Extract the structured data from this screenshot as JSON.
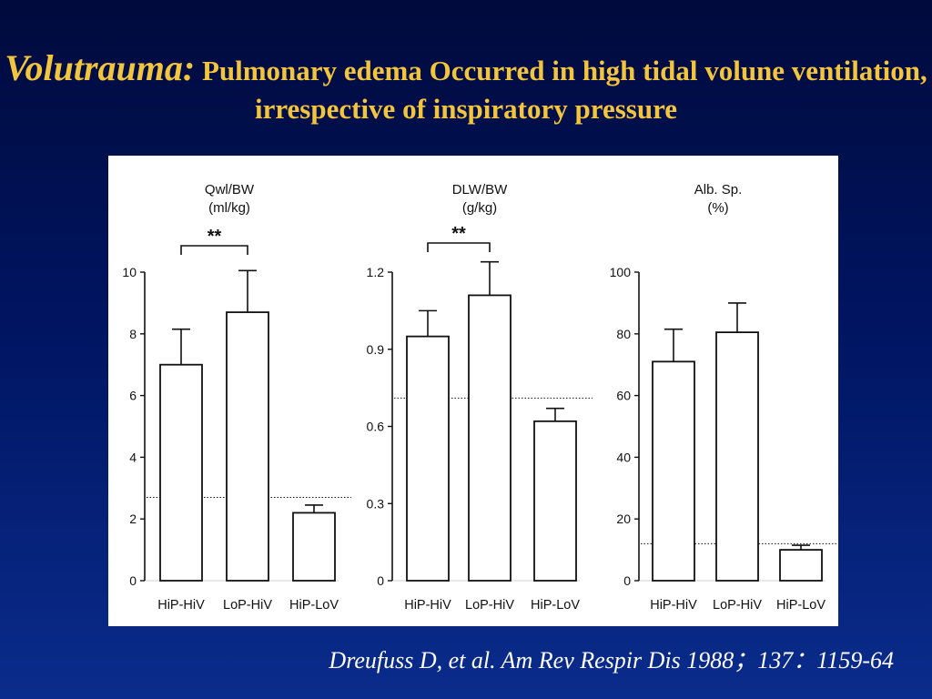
{
  "title": {
    "lead": "Volutrauma:",
    "rest": " Pulmonary edema Occurred in high tidal volune ventilation, irrespective of inspiratory pressure"
  },
  "citation": "Dreufuss D, et al. Am Rev Respir Dis 1988；137：1159-64",
  "colors": {
    "title": "#f3c43d",
    "background": "#001460",
    "bars": "#ffffff",
    "ink": "#111111"
  },
  "chart_data": [
    {
      "type": "bar",
      "title": "Qwl/BW",
      "unit": "(ml/kg)",
      "categories": [
        "HiP-HiV",
        "LoP-HiV",
        "HiP-LoV"
      ],
      "values": [
        7.0,
        8.7,
        2.2
      ],
      "errors": [
        1.15,
        1.35,
        0.25
      ],
      "ylim": [
        0,
        10
      ],
      "yticks": [
        "10",
        "8",
        "6",
        "4",
        "2",
        "0"
      ],
      "ytick_values": [
        10,
        8,
        6,
        4,
        2,
        0
      ],
      "reference_line": 2.7,
      "significance": {
        "between": [
          0,
          1
        ],
        "label": "**"
      }
    },
    {
      "type": "bar",
      "title": "DLW/BW",
      "unit": "(g/kg)",
      "categories": [
        "HiP-HiV",
        "LoP-HiV",
        "HiP-LoV"
      ],
      "values": [
        0.95,
        1.11,
        0.62
      ],
      "errors": [
        0.1,
        0.13,
        0.05
      ],
      "ylim": [
        0,
        1.2
      ],
      "yticks": [
        "1.2",
        "0.9",
        "0.6",
        "0.3",
        "0"
      ],
      "ytick_values": [
        1.2,
        0.9,
        0.6,
        0.3,
        0
      ],
      "reference_line": 0.71,
      "significance": {
        "between": [
          0,
          1
        ],
        "label": "**"
      }
    },
    {
      "type": "bar",
      "title": "Alb. Sp.",
      "unit": "(%)",
      "categories": [
        "HiP-HiV",
        "LoP-HiV",
        "HiP-LoV"
      ],
      "values": [
        71,
        80.5,
        10
      ],
      "errors": [
        10.5,
        9.5,
        1.5
      ],
      "ylim": [
        0,
        100
      ],
      "yticks": [
        "100",
        "80",
        "60",
        "40",
        "20",
        "0"
      ],
      "ytick_values": [
        100,
        80,
        60,
        40,
        20,
        0
      ],
      "reference_line": 12,
      "significance": null
    }
  ]
}
